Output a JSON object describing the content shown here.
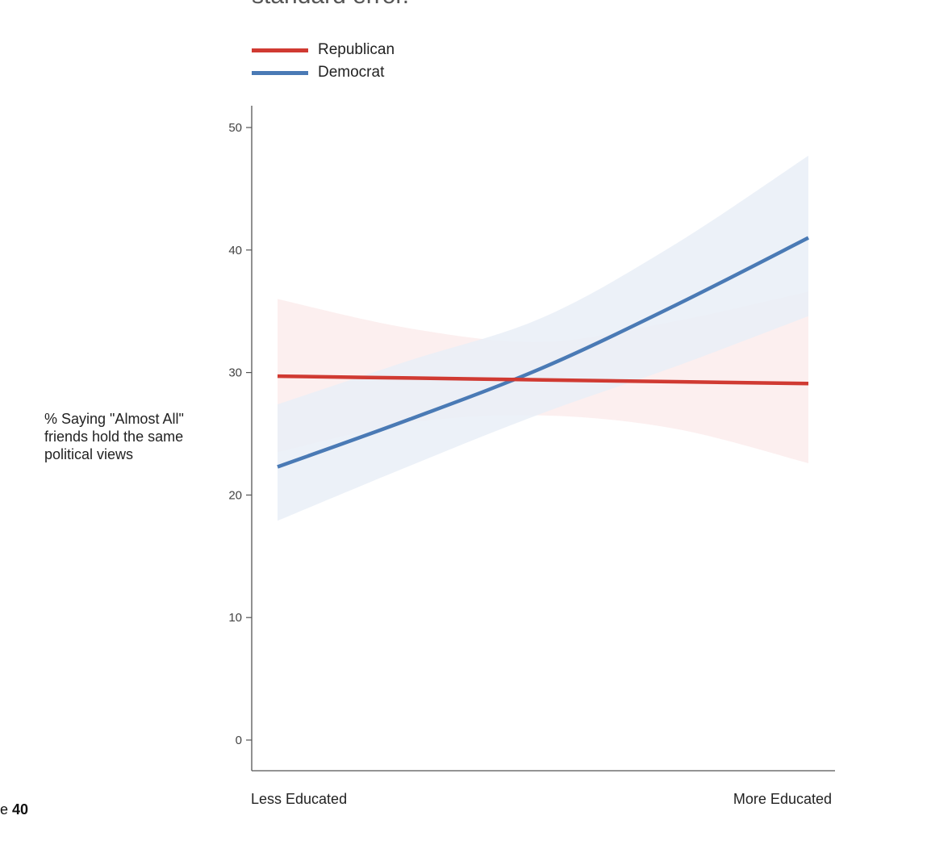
{
  "page": {
    "top_cut_text": "standard error.",
    "page_prefix": "e",
    "page_number": "40"
  },
  "chart_data": {
    "type": "line",
    "title": "",
    "ylabel": "% Saying \"Almost All\" friends hold the same political views",
    "xlabel": "",
    "x_categories": [
      "Less Educated",
      "More Educated"
    ],
    "x": [
      0,
      0.25,
      0.5,
      0.75,
      1
    ],
    "ylim": [
      0,
      52
    ],
    "yticks": [
      0,
      10,
      20,
      30,
      40,
      50
    ],
    "grid": false,
    "legend_position": "top-left",
    "series": [
      {
        "name": "Republican",
        "color": "#d03a32",
        "band_color": "#fbeaea",
        "values": [
          29.7,
          29.55,
          29.4,
          29.25,
          29.1
        ],
        "lower": [
          23.5,
          25.9,
          26.5,
          25.4,
          22.6
        ],
        "upper": [
          36.0,
          33.6,
          32.5,
          34.2,
          36.6
        ]
      },
      {
        "name": "Democrat",
        "color": "#4a7ab5",
        "band_color": "#e9eff7",
        "values": [
          22.3,
          26.2,
          30.4,
          35.5,
          41.0
        ],
        "lower": [
          17.9,
          22.4,
          26.7,
          30.5,
          34.6
        ],
        "upper": [
          27.4,
          31.0,
          34.5,
          40.5,
          47.7
        ]
      }
    ]
  }
}
